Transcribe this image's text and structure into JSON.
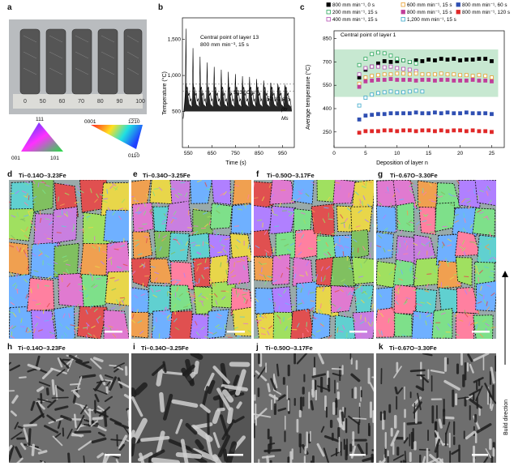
{
  "panels": {
    "a": {
      "letter": "a",
      "ruler_numbers": [
        "0",
        "50",
        "60",
        "70",
        "80",
        "90",
        "100"
      ],
      "ipf_cubic": {
        "top": "111",
        "left": "001",
        "right": "101"
      },
      "ipf_hex": {
        "top_left": "0001",
        "top_right": "1̅2̅1̅0",
        "right": "011̅0"
      }
    },
    "b": {
      "letter": "b",
      "annot1": "Central point of layer 13",
      "annot2": "800 mm min⁻¹, 15 s",
      "rate1": "523 °C s⁻¹",
      "rate2": "52 °C s⁻¹",
      "beta": "βtr",
      "ms": "Ms",
      "ylabel": "Temperature (°C)",
      "xlabel": "Time (s)",
      "yticks": [
        "1,500",
        "1,000",
        "500"
      ],
      "xticks": [
        "550",
        "650",
        "750",
        "850",
        "950"
      ]
    },
    "c": {
      "letter": "c",
      "annot": "Central point of layer 1",
      "ylabel": "Average temperature (°C)",
      "xlabel": "Deposition of layer n",
      "yticks": [
        "850",
        "700",
        "550",
        "400",
        "250"
      ],
      "xticks": [
        "0",
        "5",
        "10",
        "15",
        "20",
        "25"
      ],
      "legend": [
        "800 mm min⁻¹, 0 s",
        "200 mm min⁻¹, 15 s",
        "400 mm min⁻¹, 15 s",
        "600 mm min⁻¹, 15 s",
        "800 mm min⁻¹, 15 s",
        "1,200 mm min⁻¹, 15 s",
        "800 mm min⁻¹, 60 s",
        "800 mm min⁻¹, 120 s"
      ],
      "colors": [
        "#000000",
        "#2aa55a",
        "#b44fb4",
        "#e8a030",
        "#c03e9a",
        "#3aa7c9",
        "#2f4fb2",
        "#e02828"
      ]
    },
    "d": {
      "letter": "d",
      "title": "Ti–0.14O–3.23Fe"
    },
    "e": {
      "letter": "e",
      "title": "Ti–0.34O–3.25Fe"
    },
    "f": {
      "letter": "f",
      "title": "Ti–0.50O–3.17Fe"
    },
    "g": {
      "letter": "g",
      "title": "Ti–0.67O–3.30Fe"
    },
    "h": {
      "letter": "h",
      "title": "Ti–0.14O–3.23Fe"
    },
    "i": {
      "letter": "i",
      "title": "Ti–0.34O–3.25Fe"
    },
    "j": {
      "letter": "j",
      "title": "Ti–0.50O–3.17Fe"
    },
    "k": {
      "letter": "k",
      "title": "Ti–0.67O–3.30Fe"
    },
    "build": "Build direction"
  },
  "chart_data": [
    {
      "type": "line",
      "title": "",
      "xlabel": "Time (s)",
      "ylabel": "Temperature (°C)",
      "xlim": [
        525,
        1000
      ],
      "ylim": [
        0,
        1800
      ],
      "series": [
        {
          "name": "",
          "values_note": "thermal cycle",
          "peaks_x": [
            540,
            570,
            600,
            630,
            660,
            690,
            720,
            750,
            780,
            810,
            840,
            870,
            900,
            930,
            960
          ],
          "peaks_y": [
            1650,
            1380,
            1260,
            1180,
            1120,
            1080,
            1050,
            1020,
            990,
            980,
            950,
            930,
            900,
            880,
            860
          ]
        }
      ]
    },
    {
      "type": "scatter",
      "title": "",
      "xlabel": "Deposition of layer n",
      "ylabel": "Average temperature (°C)",
      "xlim": [
        0,
        27
      ],
      "ylim": [
        150,
        900
      ],
      "x": [
        4,
        5,
        6,
        7,
        8,
        9,
        10,
        11,
        12,
        13,
        14,
        15,
        16,
        17,
        18,
        19,
        20,
        21,
        22,
        23,
        24,
        25
      ],
      "series": [
        {
          "name": "800 mm min⁻¹, 0 s",
          "values": [
            600,
            650,
            670,
            690,
            705,
            700,
            705,
            710,
            700,
            710,
            705,
            715,
            710,
            720,
            715,
            720,
            710,
            715,
            715,
            720,
            720,
            705
          ]
        },
        {
          "name": "200 mm min⁻¹, 15 s",
          "values": [
            680,
            720,
            750,
            760,
            755,
            740,
            720,
            710,
            700,
            690,
            null,
            null,
            null,
            null,
            null,
            null,
            null,
            null,
            null,
            null,
            null,
            null
          ]
        },
        {
          "name": "400 mm min⁻¹, 15 s",
          "values": [
            620,
            660,
            670,
            670,
            665,
            670,
            660,
            655,
            650,
            640,
            null,
            null,
            null,
            null,
            null,
            null,
            null,
            null,
            null,
            null,
            null,
            null
          ]
        },
        {
          "name": "600 mm min⁻¹, 15 s",
          "values": [
            560,
            600,
            610,
            615,
            620,
            620,
            625,
            625,
            620,
            625,
            620,
            620,
            620,
            625,
            620,
            620,
            615,
            615,
            610,
            615,
            610,
            600
          ]
        },
        {
          "name": "800 mm min⁻¹, 15 s",
          "values": [
            540,
            575,
            580,
            585,
            585,
            590,
            585,
            585,
            585,
            580,
            585,
            585,
            580,
            585,
            585,
            580,
            580,
            580,
            585,
            580,
            580,
            575
          ]
        },
        {
          "name": "1,200 mm min⁻¹, 15 s",
          "values": [
            420,
            470,
            490,
            500,
            505,
            510,
            505,
            505,
            510,
            515,
            510,
            null,
            null,
            null,
            null,
            null,
            null,
            null,
            null,
            null,
            null,
            null
          ]
        },
        {
          "name": "800 mm min⁻¹, 60 s",
          "values": [
            330,
            355,
            360,
            365,
            365,
            370,
            370,
            370,
            370,
            375,
            370,
            370,
            375,
            370,
            375,
            370,
            370,
            375,
            370,
            370,
            370,
            365
          ]
        },
        {
          "name": "800 mm min⁻¹, 120 s",
          "values": [
            245,
            255,
            255,
            255,
            260,
            260,
            255,
            260,
            260,
            255,
            260,
            260,
            255,
            260,
            255,
            260,
            260,
            255,
            260,
            255,
            255,
            250
          ]
        }
      ]
    }
  ]
}
